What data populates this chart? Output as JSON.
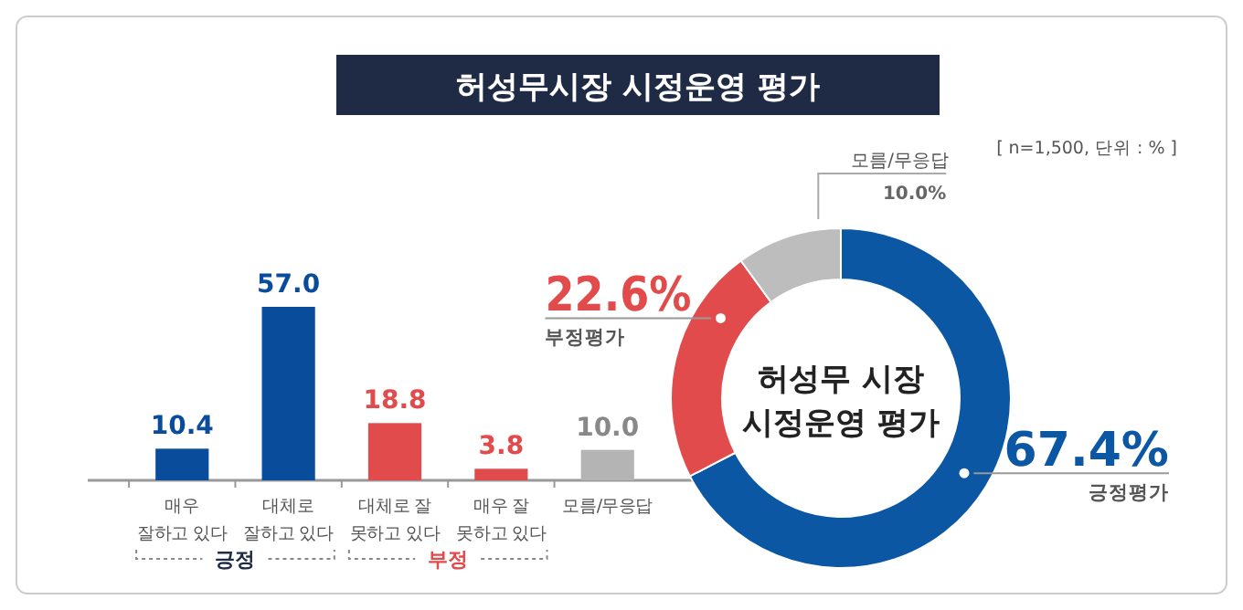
{
  "chart_data": [
    {
      "type": "bar",
      "title": "허성무시장 시정운영 평가",
      "categories": [
        "매우\n잘하고 있다",
        "대체로\n잘하고 있다",
        "대체로 잘\n못하고 있다",
        "매우 잘\n못하고 있다",
        "모름/무응답"
      ],
      "values": [
        10.4,
        57.0,
        18.8,
        3.8,
        10.0
      ],
      "value_labels": [
        "10.4",
        "57.0",
        "18.8",
        "3.8",
        "10.0"
      ],
      "colors": [
        "#0a4c9c",
        "#0a4c9c",
        "#e24b4b",
        "#e24b4b",
        "#b4b4b4"
      ],
      "annotations": [
        "긍정",
        "부정"
      ]
    },
    {
      "type": "donut",
      "title": "허성무 시장\n시정운영 평가",
      "categories": [
        "긍정평가",
        "부정평가",
        "모름/무응답"
      ],
      "values": [
        67.4,
        22.6,
        10.0
      ],
      "value_labels": [
        "67.4%",
        "22.6%",
        "10.0%"
      ],
      "colors": [
        "#0b57a4",
        "#e24b4b",
        "#bdbdbd"
      ],
      "annotations": [
        "[ n=1,500, 단위 : % ]"
      ]
    }
  ]
}
